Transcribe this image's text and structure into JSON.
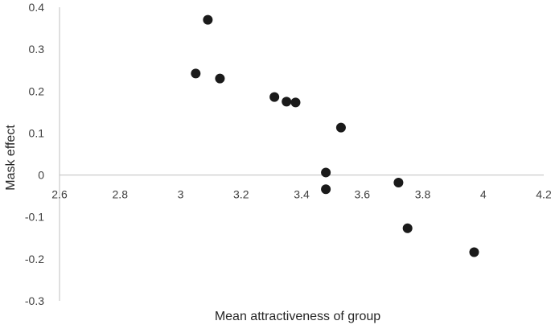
{
  "chart_data": {
    "type": "scatter",
    "title": "",
    "xlabel": "Mean attractiveness of group",
    "ylabel": "Mask effect",
    "xlim": [
      2.6,
      4.2
    ],
    "ylim": [
      -0.3,
      0.4
    ],
    "x_ticks": [
      "2.6",
      "2.8",
      "3",
      "3.2",
      "3.4",
      "3.6",
      "3.8",
      "4",
      "4.2"
    ],
    "y_ticks": [
      "0.4",
      "0.3",
      "0.2",
      "0.1",
      "0",
      "-0.1",
      "-0.2",
      "-0.3"
    ],
    "x_axis_crosses_at_y": 0,
    "grid": false,
    "legend": "none",
    "marker_color": "#1a1a1a",
    "series": [
      {
        "points": [
          {
            "x": 3.09,
            "y": 0.37
          },
          {
            "x": 3.05,
            "y": 0.242
          },
          {
            "x": 3.13,
            "y": 0.23
          },
          {
            "x": 3.31,
            "y": 0.186
          },
          {
            "x": 3.35,
            "y": 0.175
          },
          {
            "x": 3.38,
            "y": 0.173
          },
          {
            "x": 3.53,
            "y": 0.113
          },
          {
            "x": 3.48,
            "y": 0.006
          },
          {
            "x": 3.48,
            "y": -0.034
          },
          {
            "x": 3.72,
            "y": -0.018
          },
          {
            "x": 3.75,
            "y": -0.127
          },
          {
            "x": 3.97,
            "y": -0.184
          }
        ]
      }
    ]
  }
}
